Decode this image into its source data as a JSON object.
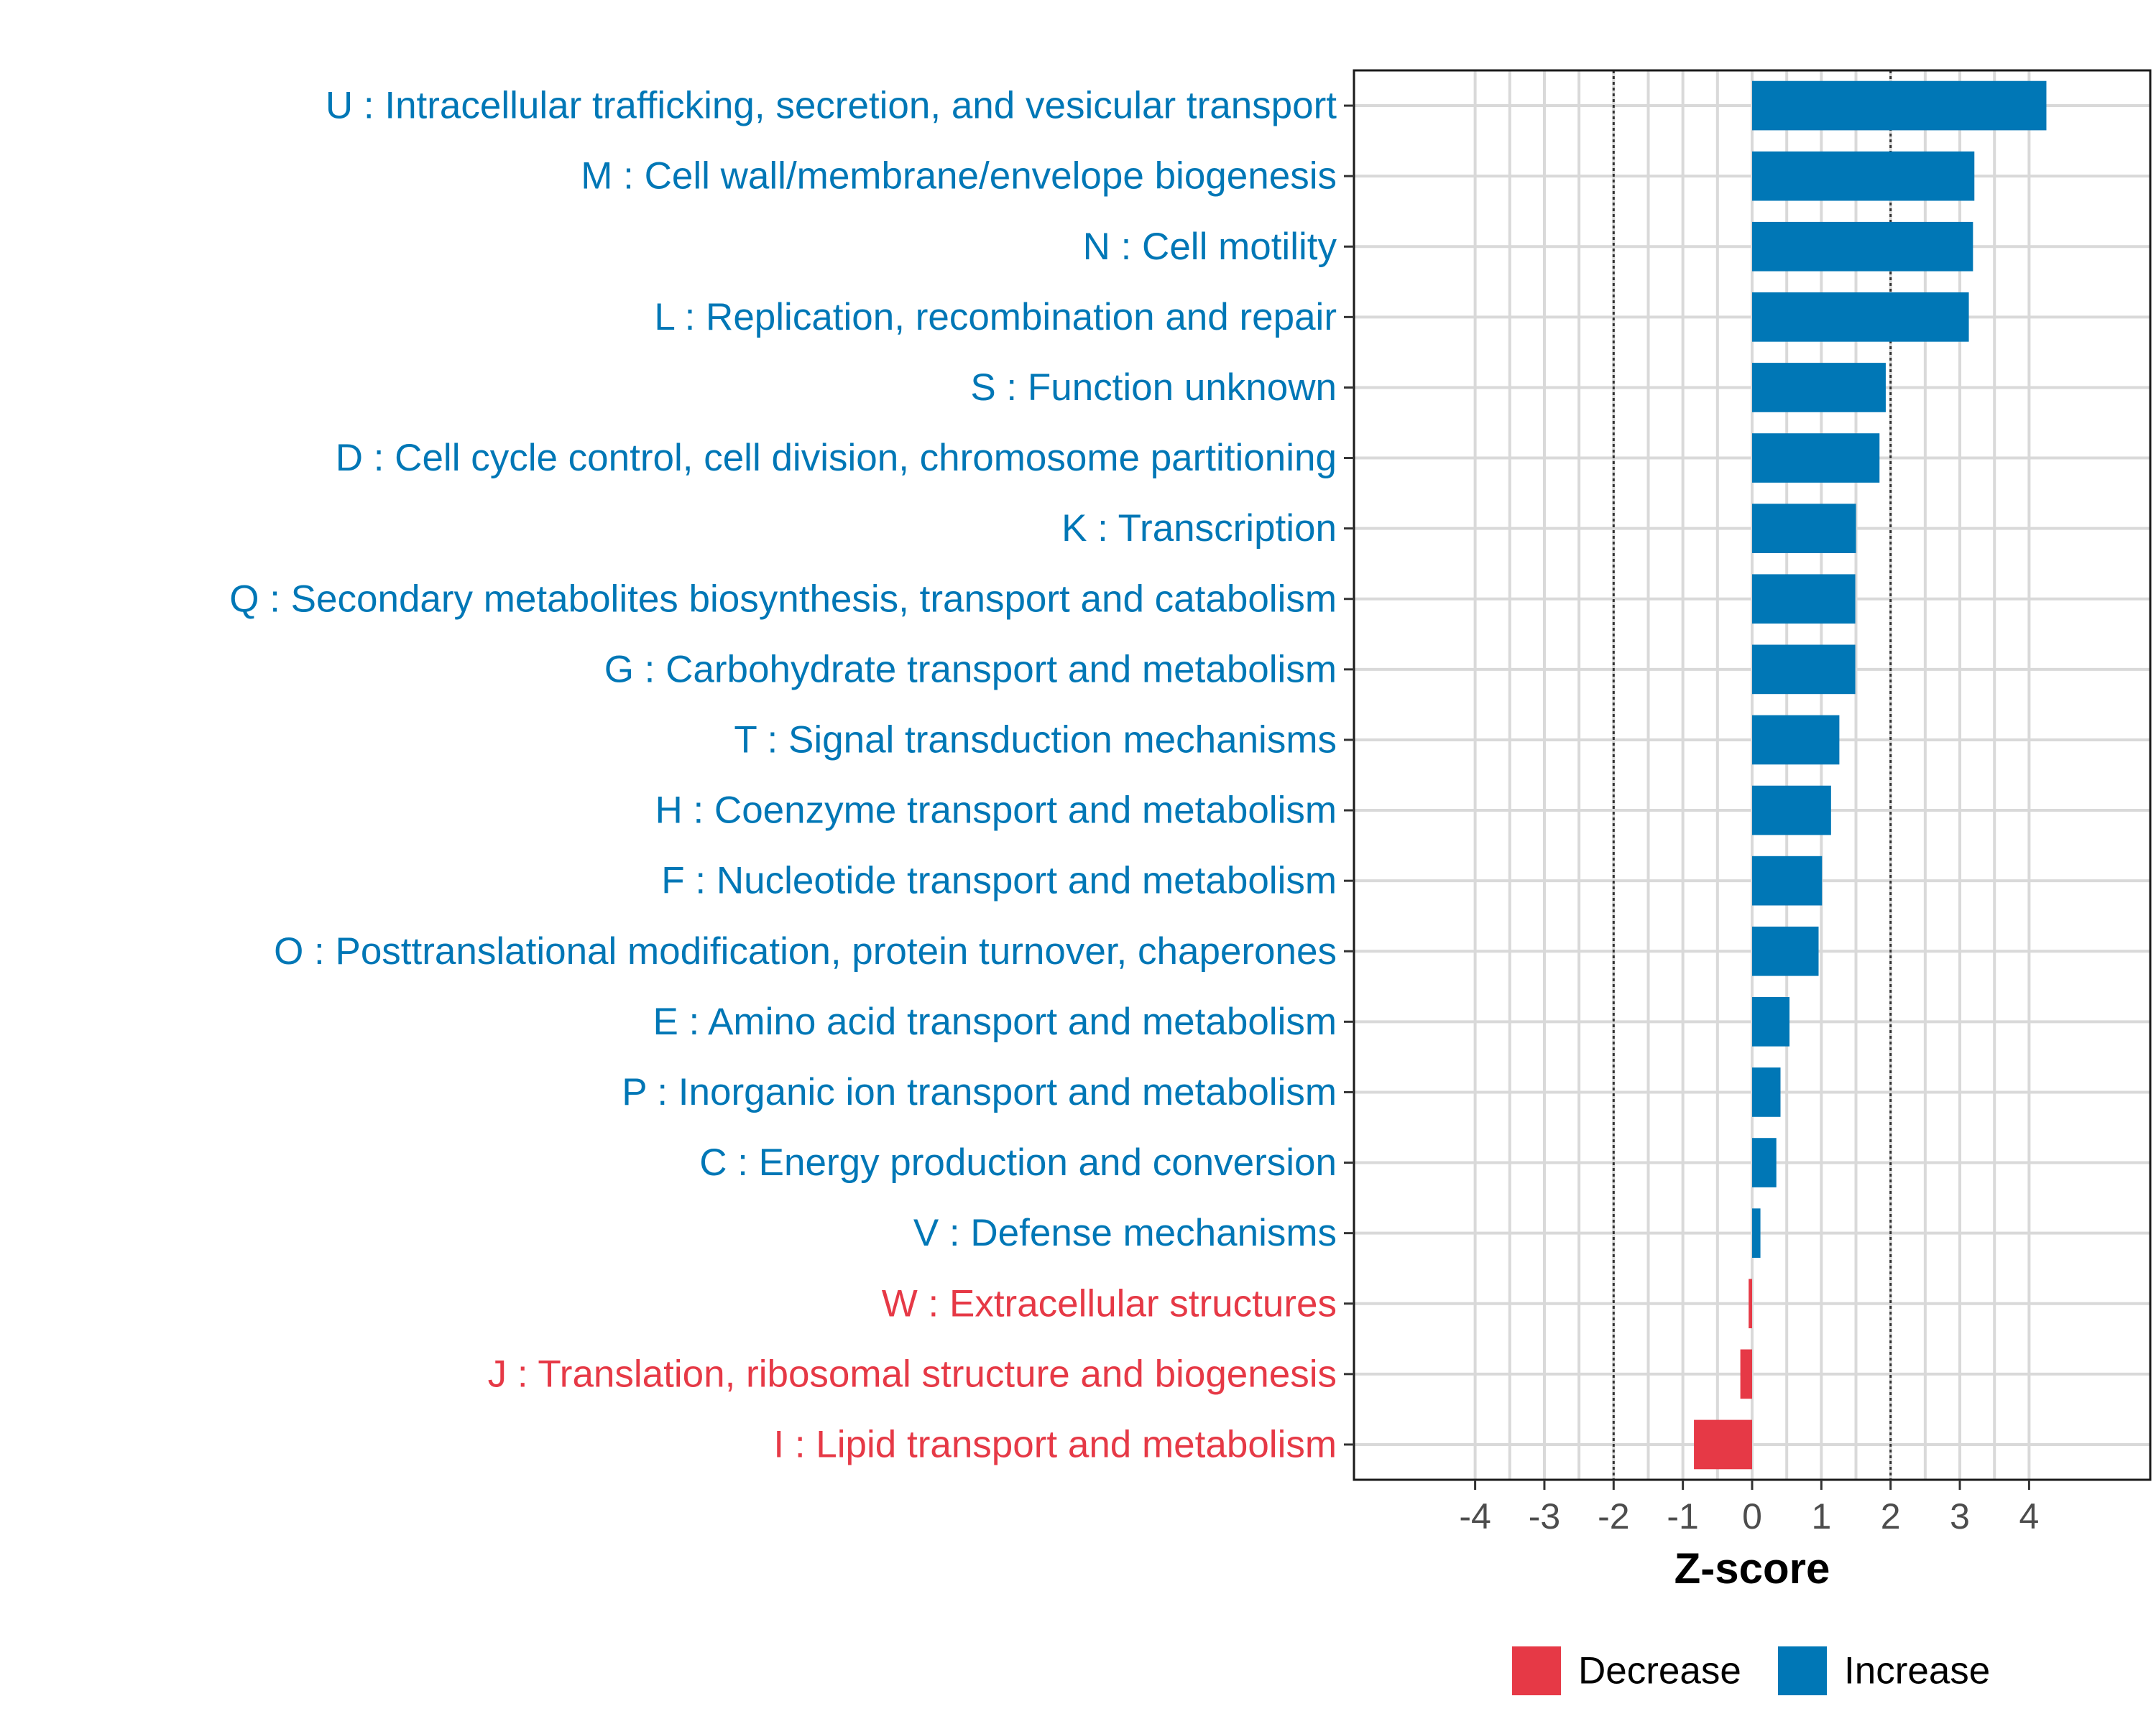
{
  "chart_data": {
    "type": "bar",
    "orientation": "horizontal",
    "title": "",
    "xlabel": "Z-score",
    "ylabel": "",
    "xlim": [
      -5.75,
      5.75
    ],
    "xticks": [
      "-4",
      "-3",
      "-2",
      "-1",
      "0",
      "1",
      "2",
      "3",
      "4"
    ],
    "xtick_values": [
      -4,
      -3,
      -2,
      -1,
      0,
      1,
      2,
      3,
      4
    ],
    "reference_lines": [
      -2,
      2
    ],
    "grid": true,
    "legend_position": "bottom",
    "legend": [
      {
        "name": "Decrease",
        "color": "#E63946"
      },
      {
        "name": "Increase",
        "color": "#0077B6"
      }
    ],
    "categories": [
      "U : Intracellular trafficking, secretion, and vesicular transport",
      "M : Cell wall/membrane/envelope biogenesis",
      "N : Cell motility",
      "L : Replication, recombination and repair",
      "S : Function unknown",
      "D : Cell cycle control, cell division, chromosome partitioning",
      "K : Transcription",
      "Q : Secondary metabolites biosynthesis, transport and catabolism",
      "G : Carbohydrate transport and metabolism",
      "T : Signal transduction mechanisms",
      "H : Coenzyme transport and metabolism",
      "F : Nucleotide transport and metabolism",
      "O : Posttranslational modification, protein turnover, chaperones",
      "E : Amino acid transport and metabolism",
      "P : Inorganic ion transport and metabolism",
      "C : Energy production and conversion",
      "V : Defense mechanisms",
      "W : Extracellular structures",
      "J : Translation, ribosomal structure and biogenesis",
      "I : Lipid transport and metabolism"
    ],
    "values": [
      4.25,
      3.21,
      3.19,
      3.13,
      1.93,
      1.84,
      1.5,
      1.49,
      1.49,
      1.26,
      1.14,
      1.01,
      0.96,
      0.54,
      0.41,
      0.35,
      0.12,
      -0.05,
      -0.17,
      -0.84
    ],
    "groups": [
      "Increase",
      "Increase",
      "Increase",
      "Increase",
      "Increase",
      "Increase",
      "Increase",
      "Increase",
      "Increase",
      "Increase",
      "Increase",
      "Increase",
      "Increase",
      "Increase",
      "Increase",
      "Increase",
      "Increase",
      "Decrease",
      "Decrease",
      "Decrease"
    ]
  }
}
